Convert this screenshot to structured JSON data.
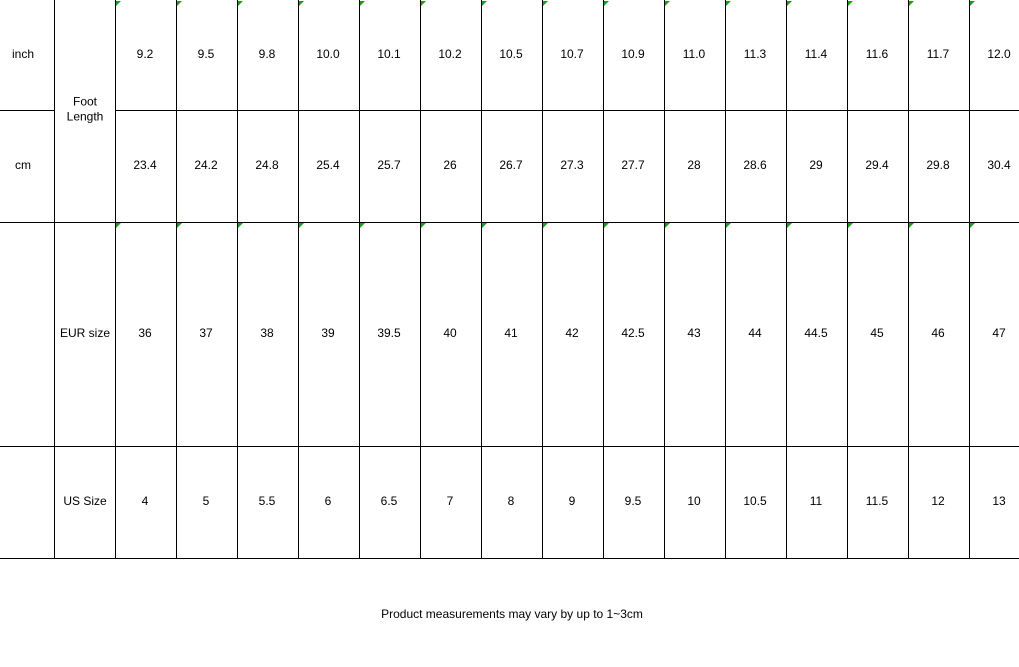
{
  "table": {
    "foot_length_label": "Foot Length",
    "rows": [
      {
        "label": "inch",
        "cells": [
          "9.2",
          "9.5",
          "9.8",
          "10.0",
          "10.1",
          "10.2",
          "10.5",
          "10.7",
          "10.9",
          "11.0",
          "11.3",
          "11.4",
          "11.6",
          "11.7",
          "12.0"
        ]
      },
      {
        "label": "cm",
        "cells": [
          "23.4",
          "24.2",
          "24.8",
          "25.4",
          "25.7",
          "26",
          "26.7",
          "27.3",
          "27.7",
          "28",
          "28.6",
          "29",
          "29.4",
          "29.8",
          "30.4"
        ]
      },
      {
        "label": "EUR size",
        "cells": [
          "36",
          "37",
          "38",
          "39",
          "39.5",
          "40",
          "41",
          "42",
          "42.5",
          "43",
          "44",
          "44.5",
          "45",
          "46",
          "47"
        ]
      },
      {
        "label": "US Size",
        "cells": [
          "4",
          "5",
          "5.5",
          "6",
          "6.5",
          "7",
          "8",
          "9",
          "9.5",
          "10",
          "10.5",
          "11",
          "11.5",
          "12",
          "13"
        ]
      }
    ]
  },
  "footer": "Product measurements may vary by up to 1~3cm"
}
